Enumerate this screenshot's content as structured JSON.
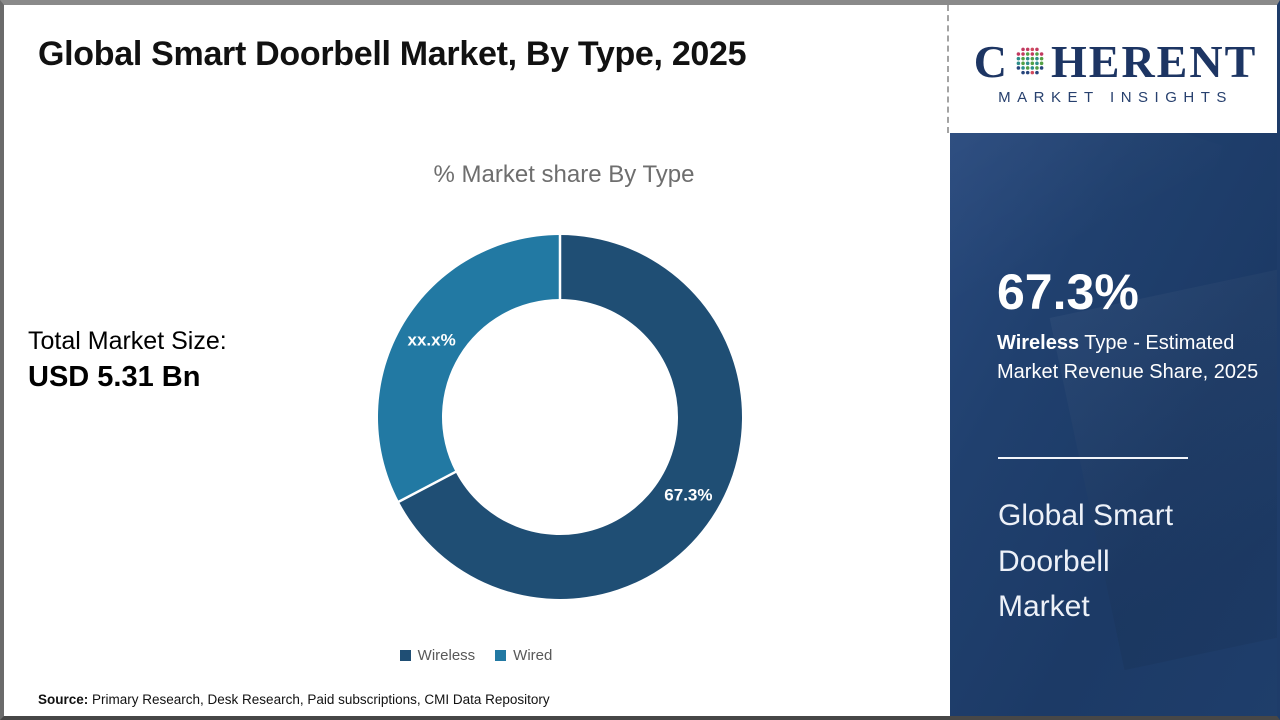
{
  "page": {
    "title": "Global Smart Doorbell Market, By Type, 2025"
  },
  "logo": {
    "name": "Coherent Market Insights",
    "word_start": "C",
    "word_end": "HERENT",
    "tagline": "MARKET INSIGHTS",
    "brand_color": "#1d3563",
    "globe_colors": [
      "#c23a60",
      "#54a045",
      "#2e8e8a",
      "#27457c",
      "#d14a5e"
    ]
  },
  "chart_data": {
    "type": "pie",
    "donut": true,
    "title": "% Market share By Type",
    "start_angle_deg": 0,
    "direction": "clockwise",
    "legend_position": "bottom",
    "slices": [
      {
        "label": "Wireless",
        "value_pct": 67.3,
        "display": "67.3%",
        "color": "#1f4e74"
      },
      {
        "label": "Wired",
        "value_pct": 32.7,
        "display": "xx.x%",
        "color": "#2279a3"
      }
    ]
  },
  "market_size": {
    "label": "Total Market Size:",
    "value": "USD 5.31 Bn"
  },
  "sidebar": {
    "stat_value": "67.3%",
    "stat_bold": "Wireless",
    "stat_rest": " Type - Estimated Market Revenue Share, 2025",
    "panel_title": "Global Smart Doorbell Market",
    "bg_color": "#1e3c69"
  },
  "source": {
    "label": "Source:",
    "text": " Primary Research, Desk Research, Paid subscriptions, CMI Data Repository"
  }
}
